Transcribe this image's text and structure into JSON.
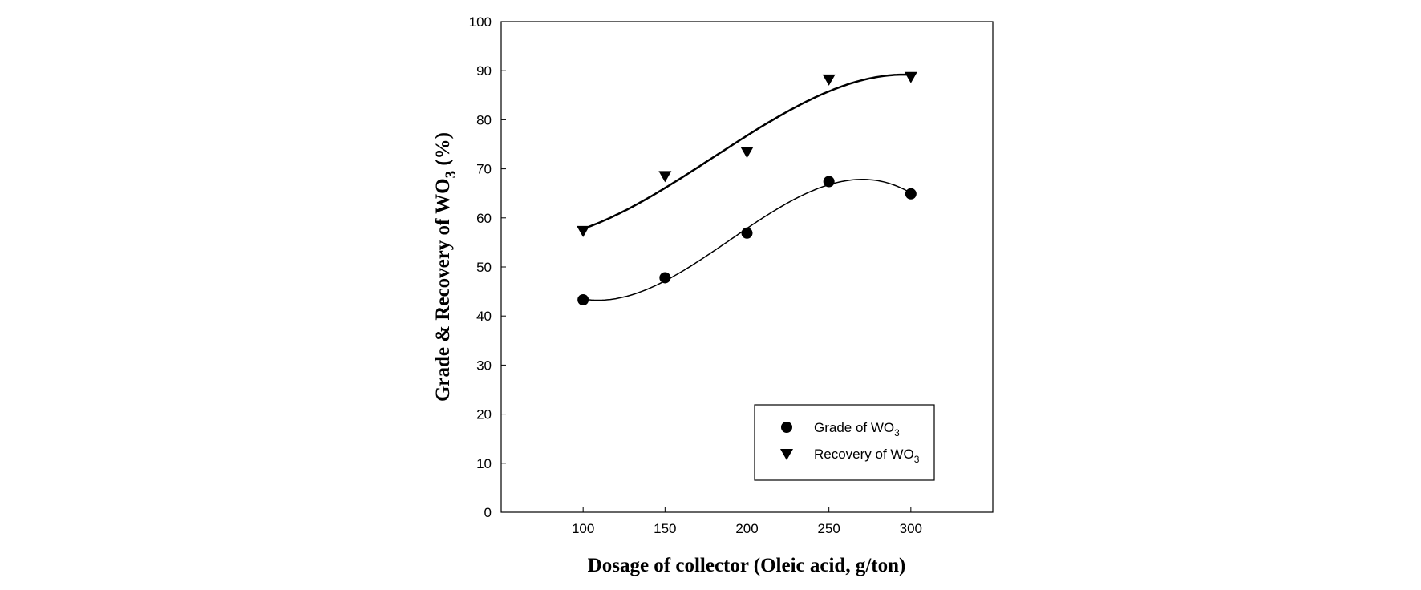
{
  "chart_data": {
    "type": "scatter",
    "xlabel": "Dosage of collector  (Oleic acid, g/ton)",
    "ylabel": {
      "prefix": "Grade & Recovery of WO",
      "sub": "3",
      "suffix": " (%)"
    },
    "xlim": [
      50,
      350
    ],
    "ylim": [
      0,
      100
    ],
    "x_ticks": [
      100,
      150,
      200,
      250,
      300
    ],
    "y_ticks": [
      0,
      10,
      20,
      30,
      40,
      50,
      60,
      70,
      80,
      90,
      100
    ],
    "grid": false,
    "legend_position": "bottom-right",
    "series": [
      {
        "name": {
          "prefix": "Grade of WO",
          "sub": "3"
        },
        "marker": "circle",
        "color": "#000000",
        "x": [
          100,
          150,
          200,
          250,
          300
        ],
        "y": [
          43.3,
          47.8,
          56.9,
          67.4,
          64.9
        ],
        "fit": "cubic",
        "fit_stroke_width": 1.5
      },
      {
        "name": {
          "prefix": "Recovery of WO",
          "sub": "3"
        },
        "marker": "triangle-down",
        "color": "#000000",
        "x": [
          100,
          150,
          200,
          250,
          300
        ],
        "y": [
          57.2,
          68.4,
          73.3,
          88.1,
          88.6
        ],
        "fit": "cubic",
        "fit_stroke_width": 2.5
      }
    ]
  }
}
